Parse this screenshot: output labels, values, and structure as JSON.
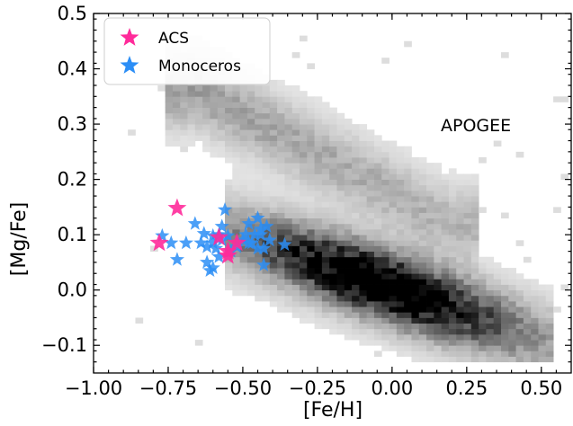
{
  "chart_data": {
    "type": "scatter",
    "title": "",
    "xlabel": "[Fe/H]",
    "ylabel": "[Mg/Fe]",
    "xlim": [
      -1.0,
      0.6
    ],
    "ylim": [
      -0.15,
      0.5
    ],
    "x_ticks": [
      -1.0,
      -0.75,
      -0.5,
      -0.25,
      0.0,
      0.25,
      0.5
    ],
    "x_tick_labels": [
      "−1.00",
      "−0.75",
      "−0.50",
      "−0.25",
      "0.00",
      "0.25",
      "0.50"
    ],
    "y_ticks": [
      -0.1,
      0.0,
      0.1,
      0.2,
      0.3,
      0.4,
      0.5
    ],
    "y_tick_labels": [
      "−0.1",
      "0.0",
      "0.1",
      "0.2",
      "0.3",
      "0.4",
      "0.5"
    ],
    "grid": false,
    "legend_position": "top-left",
    "annotation": "APOGEE",
    "background_density": {
      "name": "APOGEE",
      "colormap": "greys",
      "x_bin_width": 0.025,
      "y_bin_width": 0.01
    },
    "series": [
      {
        "name": "ACS",
        "color": "#ff2a9a",
        "marker": "star",
        "x": [
          -0.78,
          -0.72,
          -0.58,
          -0.55,
          -0.52,
          -0.55
        ],
        "y": [
          0.085,
          0.148,
          0.095,
          0.062,
          0.085,
          0.07
        ]
      },
      {
        "name": "Monoceros",
        "color": "#2c8ef6",
        "marker": "star",
        "x": [
          -0.77,
          -0.74,
          -0.72,
          -0.69,
          -0.66,
          -0.64,
          -0.63,
          -0.62,
          -0.61,
          -0.6,
          -0.6,
          -0.59,
          -0.58,
          -0.57,
          -0.56,
          -0.55,
          -0.54,
          -0.52,
          -0.5,
          -0.49,
          -0.48,
          -0.47,
          -0.46,
          -0.45,
          -0.44,
          -0.43,
          -0.42,
          -0.41,
          -0.45,
          -0.43,
          -0.36,
          -0.6,
          -0.62,
          -0.57,
          -0.48,
          -0.44,
          -0.58
        ],
        "y": [
          0.098,
          0.085,
          0.055,
          0.085,
          0.12,
          0.085,
          0.102,
          0.05,
          0.035,
          0.04,
          0.098,
          0.075,
          0.06,
          0.115,
          0.145,
          0.098,
          0.07,
          0.078,
          0.09,
          0.1,
          0.12,
          0.085,
          0.1,
          0.13,
          0.11,
          0.075,
          0.115,
          0.09,
          0.075,
          0.045,
          0.082,
          0.085,
          0.078,
          0.09,
          0.085,
          0.1,
          0.1
        ]
      }
    ]
  }
}
